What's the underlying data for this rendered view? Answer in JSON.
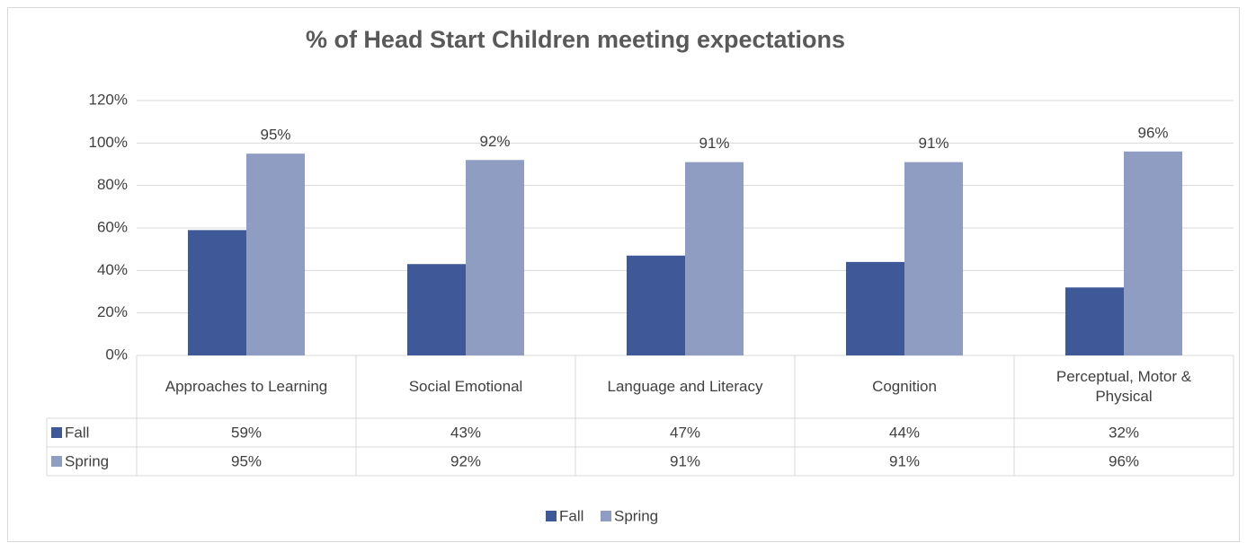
{
  "chart_data": {
    "type": "bar",
    "title": "% of Head Start Children meeting expectations",
    "categories": [
      "Approaches to Learning",
      "Social Emotional",
      "Language and Literacy",
      "Cognition",
      "Perceptual, Motor & Physical"
    ],
    "series": [
      {
        "name": "Fall",
        "color": "#3f5897",
        "values": [
          59,
          43,
          47,
          44,
          32
        ],
        "value_labels": [
          "59%",
          "43%",
          "47%",
          "44%",
          "32%"
        ]
      },
      {
        "name": "Spring",
        "color": "#8f9dc3",
        "values": [
          95,
          92,
          91,
          91,
          96
        ],
        "value_labels": [
          "95%",
          "92%",
          "91%",
          "91%",
          "96%"
        ]
      }
    ],
    "ylim": [
      0,
      120
    ],
    "yticks": [
      {
        "value": 0,
        "label": "0%"
      },
      {
        "value": 20,
        "label": "20%"
      },
      {
        "value": 40,
        "label": "40%"
      },
      {
        "value": 60,
        "label": "60%"
      },
      {
        "value": 80,
        "label": "80%"
      },
      {
        "value": 100,
        "label": "100%"
      },
      {
        "value": 120,
        "label": "120%"
      }
    ],
    "grid": true,
    "legend": "bottom"
  }
}
